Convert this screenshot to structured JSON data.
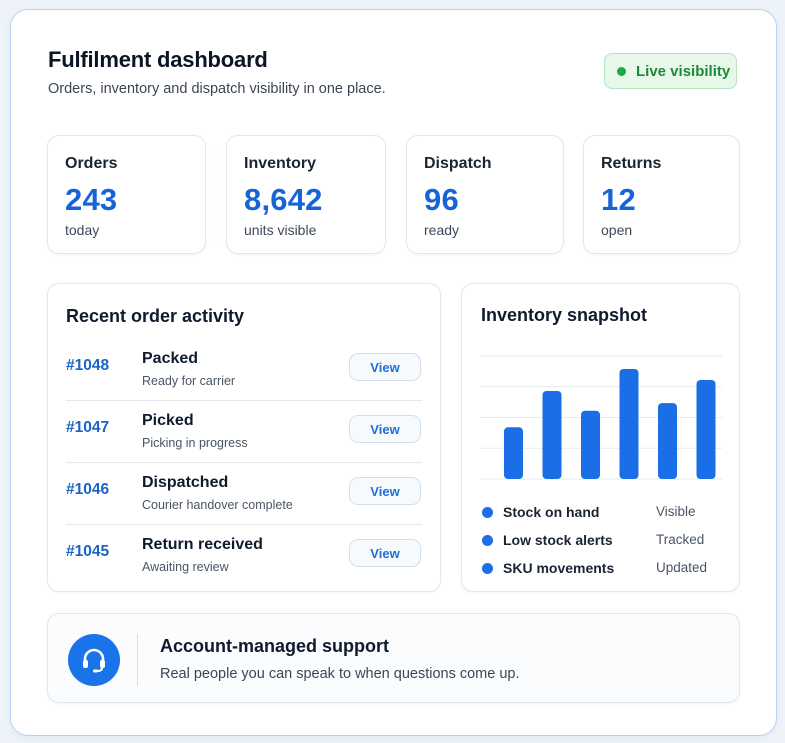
{
  "header": {
    "title": "Fulfilment dashboard",
    "subtitle": "Orders, inventory and dispatch visibility in one place.",
    "badge": "Live visibility"
  },
  "stats": [
    {
      "label": "Orders",
      "value": "243",
      "sub": "today"
    },
    {
      "label": "Inventory",
      "value": "8,642",
      "sub": "units visible"
    },
    {
      "label": "Dispatch",
      "value": "96",
      "sub": "ready"
    },
    {
      "label": "Returns",
      "value": "12",
      "sub": "open"
    }
  ],
  "activity": {
    "title": "Recent order activity",
    "view_label": "View",
    "orders": [
      {
        "id": "#1048",
        "status": "Packed",
        "note": "Ready for carrier"
      },
      {
        "id": "#1047",
        "status": "Picked",
        "note": "Picking in progress"
      },
      {
        "id": "#1046",
        "status": "Dispatched",
        "note": "Courier handover complete"
      },
      {
        "id": "#1045",
        "status": "Return received",
        "note": "Awaiting review"
      }
    ]
  },
  "snapshot": {
    "title": "Inventory snapshot",
    "legend": [
      {
        "label": "Stock on hand",
        "status": "Visible"
      },
      {
        "label": "Low stock alerts",
        "status": "Tracked"
      },
      {
        "label": "SKU movements",
        "status": "Updated"
      }
    ]
  },
  "chart_data": {
    "type": "bar",
    "values": [
      47,
      80,
      62,
      100,
      69,
      90
    ],
    "ylim": [
      0,
      100
    ],
    "grid": true,
    "color": "#1a6fe6"
  },
  "support": {
    "title": "Account-managed support",
    "text": "Real people you can speak to when questions come up.",
    "icon": "headset-icon"
  },
  "colors": {
    "accent": "#1565d8",
    "live_green": "#1fa83f"
  }
}
